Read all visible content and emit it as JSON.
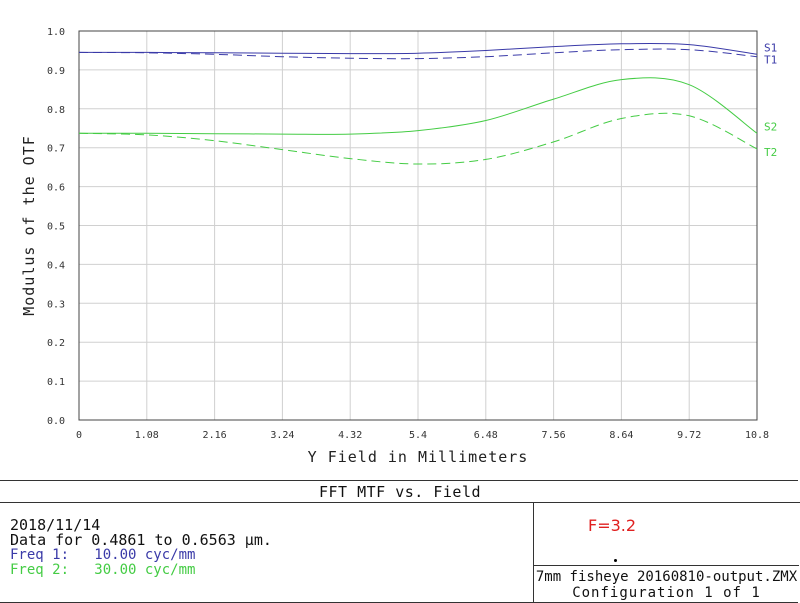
{
  "chart_data": {
    "type": "line",
    "title": "FFT MTF vs. Field",
    "xlabel": "Y Field in Millimeters",
    "ylabel": "Modulus of the OTF",
    "xlim": [
      0,
      10.8
    ],
    "ylim": [
      0,
      1.0
    ],
    "x_ticks": [
      "0",
      "1.08",
      "2.16",
      "3.24",
      "4.32",
      "5.4",
      "6.48",
      "7.56",
      "8.64",
      "9.72",
      "10.8"
    ],
    "y_ticks": [
      "0.0",
      "0.1",
      "0.2",
      "0.3",
      "0.4",
      "0.5",
      "0.6",
      "0.7",
      "0.8",
      "0.9",
      "1.0"
    ],
    "grid": true,
    "legend_placement": "right edge, beside curve ends",
    "x": [
      0,
      1.08,
      2.16,
      3.24,
      4.32,
      5.4,
      6.48,
      7.56,
      8.64,
      9.72,
      10.8
    ],
    "series": [
      {
        "name": "S1",
        "color": "#3a3aa8",
        "dash": false,
        "values": [
          0.945,
          0.945,
          0.944,
          0.943,
          0.942,
          0.943,
          0.95,
          0.96,
          0.967,
          0.965,
          0.94
        ]
      },
      {
        "name": "T1",
        "color": "#3a3aa8",
        "dash": true,
        "values": [
          0.945,
          0.944,
          0.94,
          0.934,
          0.93,
          0.929,
          0.934,
          0.944,
          0.952,
          0.952,
          0.934
        ]
      },
      {
        "name": "S2",
        "color": "#44cc44",
        "dash": false,
        "values": [
          0.737,
          0.737,
          0.736,
          0.735,
          0.735,
          0.744,
          0.77,
          0.825,
          0.875,
          0.862,
          0.737
        ]
      },
      {
        "name": "T2",
        "color": "#44cc44",
        "dash": true,
        "values": [
          0.737,
          0.733,
          0.718,
          0.695,
          0.672,
          0.658,
          0.67,
          0.715,
          0.775,
          0.782,
          0.697
        ]
      }
    ]
  },
  "footer": {
    "title": "FFT MTF vs. Field",
    "date": "2018/11/14",
    "data_range": "Data for 0.4861 to 0.6563 µm.",
    "freq1": "Freq 1:   10.00 cyc/mm",
    "freq2": "Freq 2:   30.00 cyc/mm",
    "f_number": "F=3.2",
    "file_name": "7mm fisheye 20160810-output.ZMX",
    "configuration": "Configuration 1 of 1"
  },
  "colors": {
    "freq1": "#3a3aa8",
    "freq2": "#44cc44",
    "grid": "#d0d0d0",
    "annotation": "#e02020"
  }
}
